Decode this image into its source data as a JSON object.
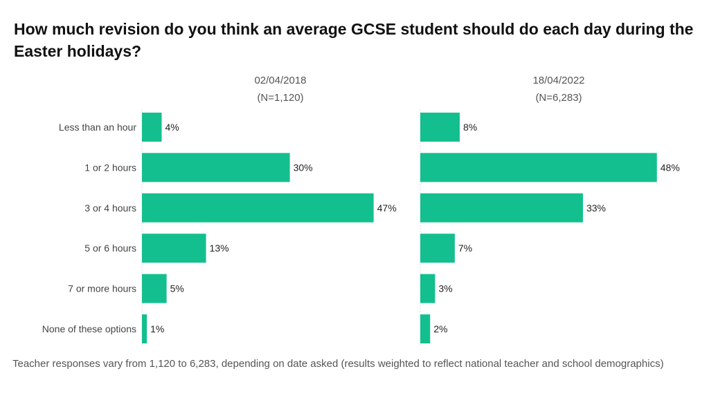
{
  "title": "How much revision do you think an average GCSE student should do each day during the Easter holidays?",
  "footnote": "Teacher responses vary from 1,120 to 6,283, depending on date asked (results weighted to reflect national teacher and school demographics)",
  "chart_data": {
    "type": "bar",
    "orientation": "horizontal",
    "categories": [
      "Less than an hour",
      "1 or 2 hours",
      "3 or 4 hours",
      "5 or 6 hours",
      "7 or more hours",
      "None of these options"
    ],
    "panels": [
      {
        "date": "02/04/2018",
        "n": "(N=1,120)",
        "values": [
          4,
          30,
          47,
          13,
          5,
          1
        ]
      },
      {
        "date": "18/04/2022",
        "n": "(N=6,283)",
        "values": [
          8,
          48,
          33,
          7,
          3,
          2
        ]
      }
    ],
    "unit": "%",
    "bar_color": "#14BF8F",
    "grid": false
  }
}
